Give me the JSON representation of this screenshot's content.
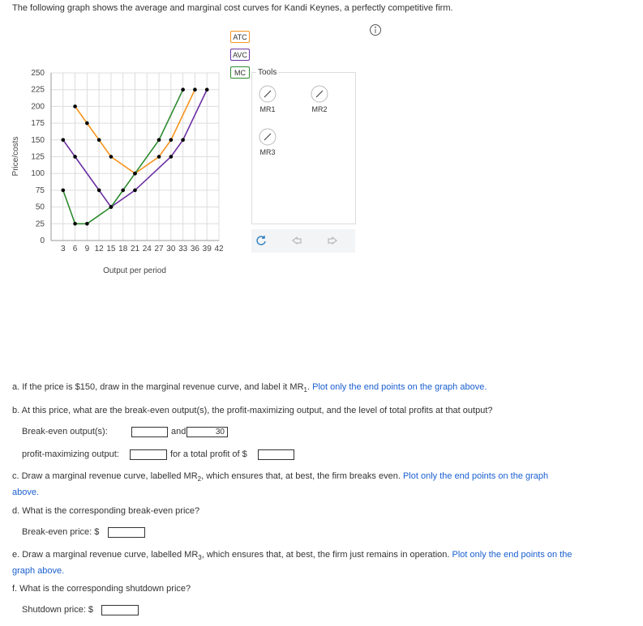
{
  "header": {
    "title": "The following graph shows the average and marginal cost curves for Kandi Keynes, a perfectly competitive firm."
  },
  "chart_data": {
    "type": "line",
    "ylabel": "Price/costs",
    "xlabel": "Output per period",
    "xlim": [
      0,
      42
    ],
    "ylim": [
      0,
      250
    ],
    "xticks": [
      3,
      6,
      9,
      12,
      15,
      18,
      21,
      24,
      27,
      30,
      33,
      36,
      39,
      42
    ],
    "yticks": [
      0,
      25,
      50,
      75,
      100,
      125,
      150,
      175,
      200,
      225,
      250
    ],
    "grid": true,
    "series": [
      {
        "name": "ATC",
        "color": "#f7941d",
        "x": [
          6,
          9,
          12,
          15,
          21,
          27,
          30,
          36
        ],
        "values": [
          200,
          175,
          150,
          125,
          100,
          125,
          150,
          225
        ]
      },
      {
        "name": "AVC",
        "color": "#6b2fa3",
        "x": [
          3,
          6,
          12,
          15,
          21,
          30,
          33,
          39
        ],
        "values": [
          150,
          125,
          75,
          50,
          75,
          125,
          150,
          225
        ]
      },
      {
        "name": "MC",
        "color": "#2e8b2e",
        "x": [
          3,
          6,
          9,
          15,
          18,
          21,
          27,
          33
        ],
        "values": [
          75,
          25,
          25,
          50,
          75,
          100,
          150,
          225
        ]
      }
    ]
  },
  "tools": {
    "title": "Tools",
    "items": [
      "MR1",
      "MR2",
      "MR3"
    ]
  },
  "questions": {
    "a": {
      "text": "a. If the price is $150, draw in the marginal revenue curve, and label it MR",
      "sub": "1",
      "after": ".",
      "link": "Plot only the end points on the graph above."
    },
    "b": {
      "text": "b. At this price, what are the break-even output(s), the profit-maximizing output, and the level of total profits at that output?",
      "break_even_label": "Break-even output(s):",
      "and": "and",
      "filled_value": "30",
      "profit_max_label": "profit-maximizing output:",
      "profit_label": "for a total profit of $"
    },
    "c": {
      "text": "c. Draw a marginal revenue curve, labelled MR",
      "sub": "2",
      "after": ", which ensures that, at best, the firm breaks even.",
      "link": "Plot only the end points on the graph above."
    },
    "d": {
      "text": "d. What is the corresponding break-even price?",
      "label": "Break-even price: $"
    },
    "e": {
      "text": "e. Draw a marginal revenue curve, labelled MR",
      "sub": "3",
      "after": ", which ensures that, at best, the firm just remains in operation.",
      "link": "Plot only the end points on the graph above."
    },
    "f": {
      "text": "f. What is the corresponding shutdown price?",
      "label": "Shutdown price: $"
    }
  }
}
